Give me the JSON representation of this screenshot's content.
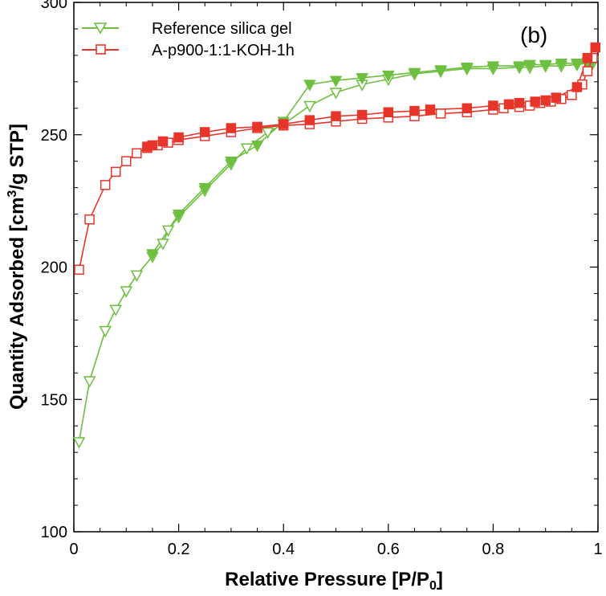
{
  "chart_data": {
    "type": "line",
    "panel_label": "(b)",
    "xlabel": "Relative Pressure [P/P",
    "xlabel_sub": "0",
    "xlabel_end": "]",
    "ylabel": "Quantity Adsorbed [cm",
    "ylabel_sup": "3",
    "ylabel_end": "/g STP]",
    "xlim": [
      0,
      1
    ],
    "ylim": [
      100,
      300
    ],
    "xticks": [
      0,
      0.2,
      0.4,
      0.6,
      0.8,
      1
    ],
    "xtick_labels": [
      "0",
      "0.2",
      "0.4",
      "0.6",
      "0.8",
      "1"
    ],
    "yticks": [
      100,
      150,
      200,
      250,
      300
    ],
    "ytick_labels": [
      "100",
      "150",
      "200",
      "250",
      "300"
    ],
    "grid": false,
    "legend_position": "top-left",
    "series": [
      {
        "name": "Reference silica gel",
        "color": "#6cbf3f",
        "marker": "triangle-down",
        "adsorption": {
          "x": [
            0.01,
            0.03,
            0.06,
            0.08,
            0.1,
            0.12,
            0.15,
            0.17,
            0.18,
            0.2,
            0.25,
            0.3,
            0.33,
            0.37,
            0.4,
            0.45,
            0.5,
            0.55,
            0.6,
            0.65,
            0.7,
            0.75,
            0.8,
            0.85,
            0.87,
            0.9,
            0.93,
            0.96,
            0.98,
            0.99
          ],
          "y": [
            134,
            157,
            176,
            184,
            191,
            197,
            204,
            209,
            214,
            219,
            229,
            239,
            245,
            251,
            254,
            261,
            266,
            269,
            271,
            273,
            274,
            275,
            275,
            275.5,
            275.5,
            276,
            276,
            276.5,
            277,
            277
          ]
        },
        "desorption": {
          "x": [
            0.99,
            0.98,
            0.96,
            0.93,
            0.9,
            0.87,
            0.85,
            0.8,
            0.75,
            0.7,
            0.65,
            0.6,
            0.55,
            0.5,
            0.45,
            0.4,
            0.35,
            0.3,
            0.25,
            0.2,
            0.15
          ],
          "y": [
            278,
            277.5,
            277,
            277,
            276.5,
            276.5,
            276,
            276,
            275.5,
            274.5,
            273.5,
            272.5,
            271.5,
            270.5,
            269,
            255,
            246,
            240,
            230,
            220,
            205
          ]
        }
      },
      {
        "name": "A-p900-1:1-KOH-1h",
        "color": "#e8352a",
        "marker": "square",
        "adsorption": {
          "x": [
            0.01,
            0.03,
            0.06,
            0.08,
            0.1,
            0.12,
            0.14,
            0.16,
            0.18,
            0.2,
            0.25,
            0.3,
            0.35,
            0.4,
            0.45,
            0.5,
            0.55,
            0.6,
            0.65,
            0.7,
            0.75,
            0.8,
            0.82,
            0.85,
            0.87,
            0.89,
            0.91,
            0.93,
            0.95,
            0.97,
            0.98,
            0.99
          ],
          "y": [
            199,
            218,
            231,
            236,
            240,
            243,
            245,
            246,
            247,
            248,
            249.5,
            251,
            252.5,
            253.5,
            254,
            255,
            256,
            256.5,
            257,
            258,
            258.5,
            259.5,
            260,
            260.5,
            261,
            262,
            262.5,
            263.5,
            265,
            269,
            274,
            279
          ]
        },
        "desorption": {
          "x": [
            0.995,
            0.98,
            0.96,
            0.92,
            0.9,
            0.88,
            0.85,
            0.83,
            0.8,
            0.75,
            0.68,
            0.65,
            0.6,
            0.55,
            0.5,
            0.45,
            0.4,
            0.35,
            0.3,
            0.25,
            0.2,
            0.17,
            0.15,
            0.14
          ],
          "y": [
            283,
            279,
            268,
            264,
            263,
            262.5,
            262,
            261.5,
            261,
            260,
            259.5,
            259,
            258.5,
            257.5,
            257,
            255.5,
            254,
            253,
            252.5,
            251,
            249,
            247.5,
            246,
            245.5
          ]
        }
      }
    ]
  }
}
